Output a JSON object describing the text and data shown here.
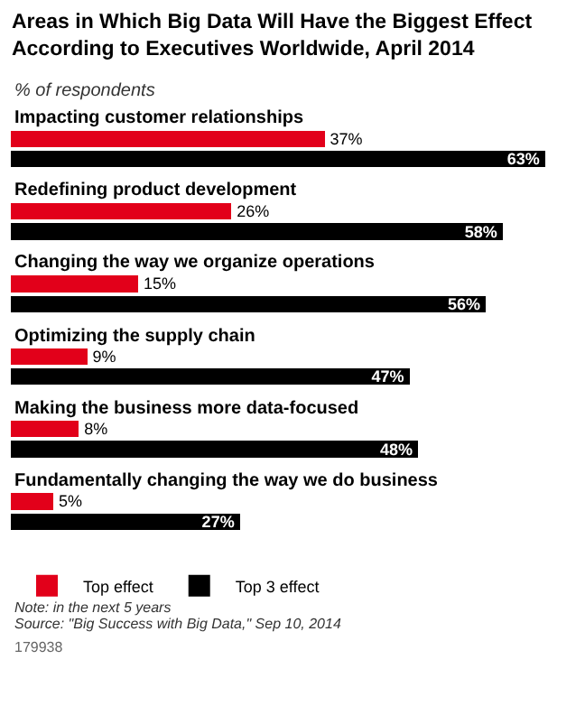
{
  "chart_data": {
    "type": "bar",
    "orientation": "horizontal",
    "title": "Areas in Which Big Data Will Have the Biggest Effect According to Executives Worldwide, April 2014",
    "subtitle": "% of respondents",
    "categories": [
      "Impacting customer relationships",
      "Redefining product development",
      "Changing the way we organize operations",
      "Optimizing the supply chain",
      "Making the business more data-focused",
      "Fundamentally changing the way we do business"
    ],
    "series": [
      {
        "name": "Top effect",
        "color": "#e2001a",
        "values": [
          37,
          26,
          15,
          9,
          8,
          5
        ],
        "value_labels": [
          "37%",
          "26%",
          "15%",
          "9%",
          "8%",
          "5%"
        ]
      },
      {
        "name": "Top 3 effect",
        "color": "#000000",
        "values": [
          63,
          58,
          56,
          47,
          48,
          27
        ],
        "value_labels": [
          "63%",
          "58%",
          "56%",
          "47%",
          "48%",
          "27%"
        ]
      }
    ],
    "legend": "bottom left",
    "annotations": [
      "Note: in the next 5 years",
      "Source: \"Big Success with Big Data,\" Sep 10, 2014",
      "179938"
    ]
  }
}
